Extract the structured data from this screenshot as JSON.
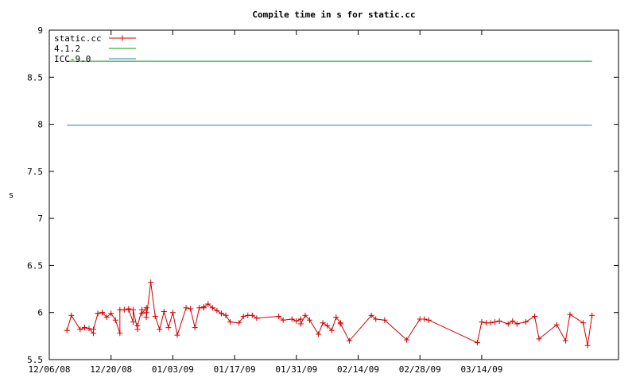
{
  "chart_data": {
    "type": "line",
    "title": "Compile time in s for static.cc",
    "xlabel": "",
    "ylabel": "s",
    "xlim": [
      "2008-12-06",
      "2009-04-14"
    ],
    "ylim": [
      5.5,
      9
    ],
    "x_ticks": [
      "12/06/08",
      "12/20/08",
      "01/03/09",
      "01/17/09",
      "01/31/09",
      "02/14/09",
      "02/28/09",
      "03/14/09"
    ],
    "y_ticks": [
      "5.5",
      "6",
      "6.5",
      "7",
      "7.5",
      "8",
      "8.5",
      "9"
    ],
    "grid": false,
    "legend_position": "top-left",
    "series": [
      {
        "name": "static.cc",
        "color": "#d00000",
        "marker": "plus",
        "x": [
          "2008-12-10",
          "2008-12-11",
          "2008-12-13",
          "2008-12-14",
          "2008-12-14",
          "2008-12-15",
          "2008-12-16",
          "2008-12-16",
          "2008-12-17",
          "2008-12-17",
          "2008-12-18",
          "2008-12-18",
          "2008-12-19",
          "2008-12-20",
          "2008-12-21",
          "2008-12-22",
          "2008-12-22",
          "2008-12-23",
          "2008-12-24",
          "2008-12-24",
          "2008-12-25",
          "2008-12-25",
          "2008-12-26",
          "2008-12-26",
          "2008-12-27",
          "2008-12-27",
          "2008-12-28",
          "2008-12-28",
          "2008-12-28",
          "2008-12-29",
          "2008-12-30",
          "2008-12-31",
          "2009-01-01",
          "2009-01-02",
          "2009-01-03",
          "2009-01-04",
          "2009-01-06",
          "2009-01-07",
          "2009-01-08",
          "2009-01-09",
          "2009-01-10",
          "2009-01-10",
          "2009-01-11",
          "2009-01-12",
          "2009-01-13",
          "2009-01-14",
          "2009-01-14",
          "2009-01-15",
          "2009-01-16",
          "2009-01-18",
          "2009-01-19",
          "2009-01-20",
          "2009-01-21",
          "2009-01-22",
          "2009-01-27",
          "2009-01-28",
          "2009-01-30",
          "2009-01-31",
          "2009-02-01",
          "2009-02-01",
          "2009-02-02",
          "2009-02-03",
          "2009-02-05",
          "2009-02-06",
          "2009-02-07",
          "2009-02-08",
          "2009-02-09",
          "2009-02-10",
          "2009-02-10",
          "2009-02-12",
          "2009-02-17",
          "2009-02-18",
          "2009-02-20",
          "2009-02-25",
          "2009-02-28",
          "2009-03-01",
          "2009-03-02",
          "2009-03-13",
          "2009-03-14",
          "2009-03-15",
          "2009-03-16",
          "2009-03-17",
          "2009-03-18",
          "2009-03-20",
          "2009-03-21",
          "2009-03-22",
          "2009-03-24",
          "2009-03-26",
          "2009-03-27",
          "2009-03-31",
          "2009-04-02",
          "2009-04-03",
          "2009-04-06",
          "2009-04-07",
          "2009-04-08"
        ],
        "values": [
          5.81,
          5.97,
          5.82,
          5.84,
          5.84,
          5.83,
          5.78,
          5.82,
          5.99,
          5.99,
          6.0,
          6.0,
          5.95,
          5.99,
          5.92,
          5.78,
          6.03,
          6.03,
          6.04,
          6.03,
          5.9,
          6.03,
          5.82,
          5.86,
          6.03,
          5.99,
          6.05,
          6.0,
          5.95,
          6.32,
          5.96,
          5.82,
          6.01,
          5.84,
          6.0,
          5.76,
          6.05,
          6.04,
          5.84,
          6.05,
          6.05,
          6.06,
          6.09,
          6.05,
          6.02,
          5.99,
          5.99,
          5.97,
          5.9,
          5.89,
          5.96,
          5.97,
          5.97,
          5.94,
          5.96,
          5.92,
          5.93,
          5.91,
          5.93,
          5.88,
          5.97,
          5.92,
          5.77,
          5.89,
          5.86,
          5.81,
          5.95,
          5.89,
          5.88,
          5.7,
          5.97,
          5.93,
          5.92,
          5.71,
          5.93,
          5.93,
          5.92,
          5.68,
          5.9,
          5.89,
          5.89,
          5.9,
          5.91,
          5.88,
          5.91,
          5.88,
          5.9,
          5.96,
          5.72,
          5.87,
          5.7,
          5.98,
          5.89,
          5.65,
          5.97
        ]
      },
      {
        "name": "4.1.2",
        "color": "#00a000",
        "x": [
          "2008-12-10",
          "2009-04-08"
        ],
        "values": [
          8.67,
          8.67
        ]
      },
      {
        "name": "ICC-9.0",
        "color": "#1f78d0",
        "x": [
          "2008-12-10",
          "2009-04-08"
        ],
        "values": [
          7.99,
          7.99
        ]
      }
    ]
  }
}
